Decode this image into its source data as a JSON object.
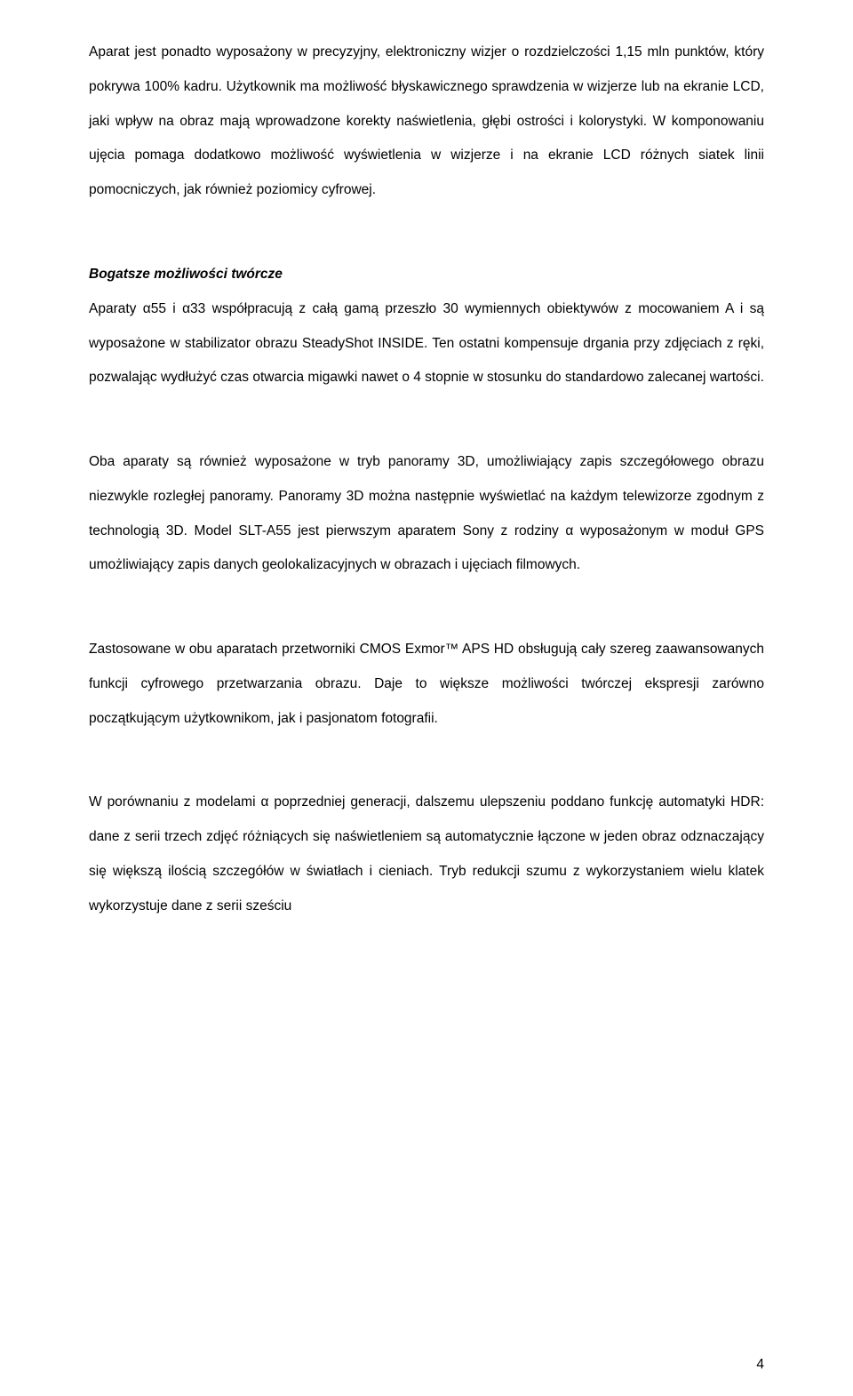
{
  "paragraphs": {
    "p1": "Aparat jest ponadto wyposażony w precyzyjny, elektroniczny wizjer o rozdzielczości 1,15 mln punktów, który pokrywa 100% kadru. Użytkownik ma możliwość błyskawicznego sprawdzenia w wizjerze lub na ekranie LCD, jaki wpływ na obraz mają wprowadzone korekty naświetlenia, głębi ostrości i kolorystyki. W komponowaniu ujęcia pomaga dodatkowo możliwość wyświetlenia w wizjerze i na ekranie LCD różnych siatek linii pomocniczych, jak również poziomicy cyfrowej.",
    "heading": "Bogatsze możliwości twórcze",
    "p2": "Aparaty α55 i α33 współpracują z całą gamą przeszło 30 wymiennych obiektywów z mocowaniem A i są wyposażone w stabilizator obrazu SteadyShot INSIDE. Ten ostatni kompensuje drgania przy zdjęciach z ręki, pozwalając wydłużyć czas otwarcia migawki nawet o 4 stopnie w stosunku do standardowo zalecanej wartości.",
    "p3": "Oba aparaty są również wyposażone w tryb panoramy 3D, umożliwiający zapis szczegółowego obrazu niezwykle rozległej panoramy. Panoramy 3D można następnie wyświetlać na każdym telewizorze zgodnym z technologią 3D. Model SLT-A55 jest pierwszym aparatem Sony z rodziny α wyposażonym w moduł GPS umożliwiający zapis danych geolokalizacyjnych w obrazach i ujęciach filmowych.",
    "p4": "Zastosowane w obu aparatach przetworniki CMOS Exmor™ APS HD obsługują cały szereg zaawansowanych funkcji cyfrowego przetwarzania obrazu. Daje to większe możliwości twórczej ekspresji zarówno początkującym użytkownikom, jak i pasjonatom fotografii.",
    "p5": "W porównaniu z modelami α poprzedniej generacji, dalszemu ulepszeniu poddano funkcję automatyki HDR: dane z serii trzech zdjęć różniących się naświetleniem są automatycznie łączone w jeden obraz odznaczający się większą ilością szczegółów w światłach i cieniach. Tryb redukcji szumu z wykorzystaniem wielu klatek wykorzystuje dane z serii sześciu"
  },
  "page_number": "4"
}
